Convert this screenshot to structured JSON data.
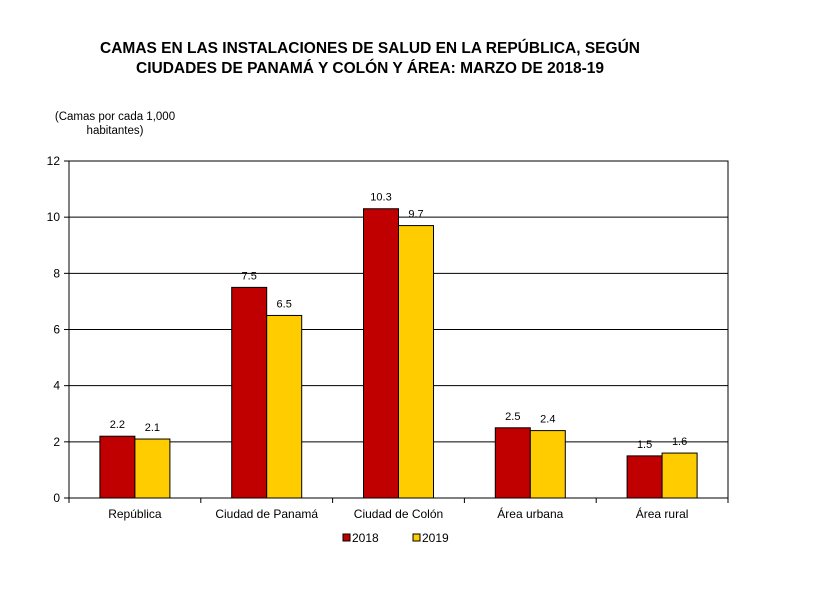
{
  "chart_data": {
    "type": "bar",
    "title_line1": "CAMAS EN LAS INSTALACIONES DE SALUD EN LA REPÚBLICA, SEGÚN",
    "title_line2": "CIUDADES DE PANAMÁ Y COLÓN Y ÁREA: MARZO DE 2018-19",
    "ylabel_line1": "(Camas por cada 1,000",
    "ylabel_line2": "habitantes)",
    "xlabel": "",
    "categories": [
      "República",
      "Ciudad de Panamá",
      "Ciudad de Colón",
      "Área urbana",
      "Área rural"
    ],
    "series": [
      {
        "name": "2018",
        "color": "#C00000",
        "values": [
          2.2,
          7.5,
          10.3,
          2.5,
          1.5
        ],
        "labels": [
          "2.2",
          "7.5",
          "10.3",
          "2.5",
          "1.5"
        ]
      },
      {
        "name": "2019",
        "color": "#FFCC00",
        "values": [
          2.1,
          6.5,
          9.7,
          2.4,
          1.6
        ],
        "labels": [
          "2.1",
          "6.5",
          "9.7",
          "2.4",
          "1.6"
        ]
      }
    ],
    "ylim": [
      0,
      12
    ],
    "yticks": [
      0,
      2,
      4,
      6,
      8,
      10,
      12
    ],
    "grid": true,
    "legend_position": "bottom-center"
  }
}
